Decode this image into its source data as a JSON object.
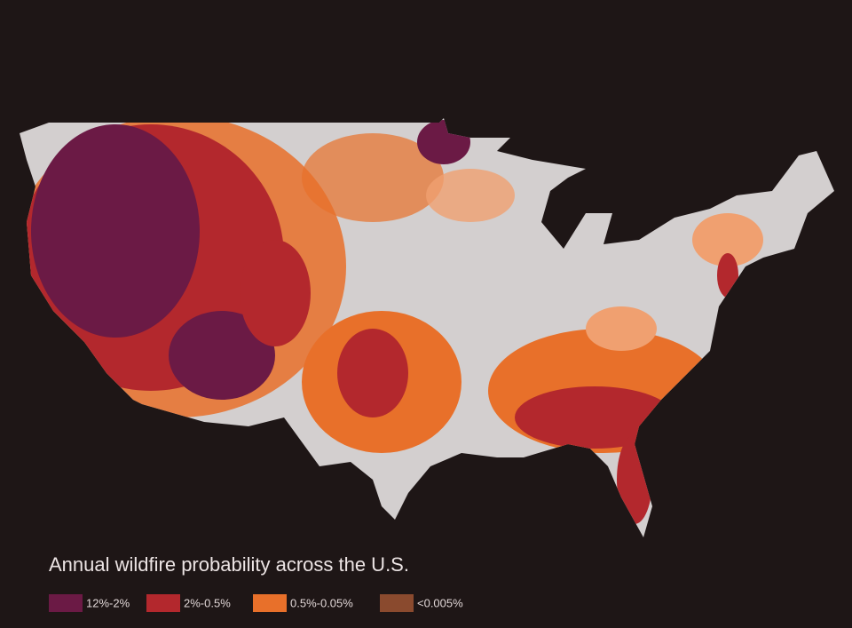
{
  "title": "Annual wildfire probability across the U.S.",
  "legend": [
    {
      "label": "12%-2%",
      "color": "#6b1a45"
    },
    {
      "label": "2%-0.5%",
      "color": "#b3282d"
    },
    {
      "label": "0.5%-0.05%",
      "color": "#e8702a"
    },
    {
      "label": "<0.005%",
      "color": "#8a4a2e"
    }
  ]
}
